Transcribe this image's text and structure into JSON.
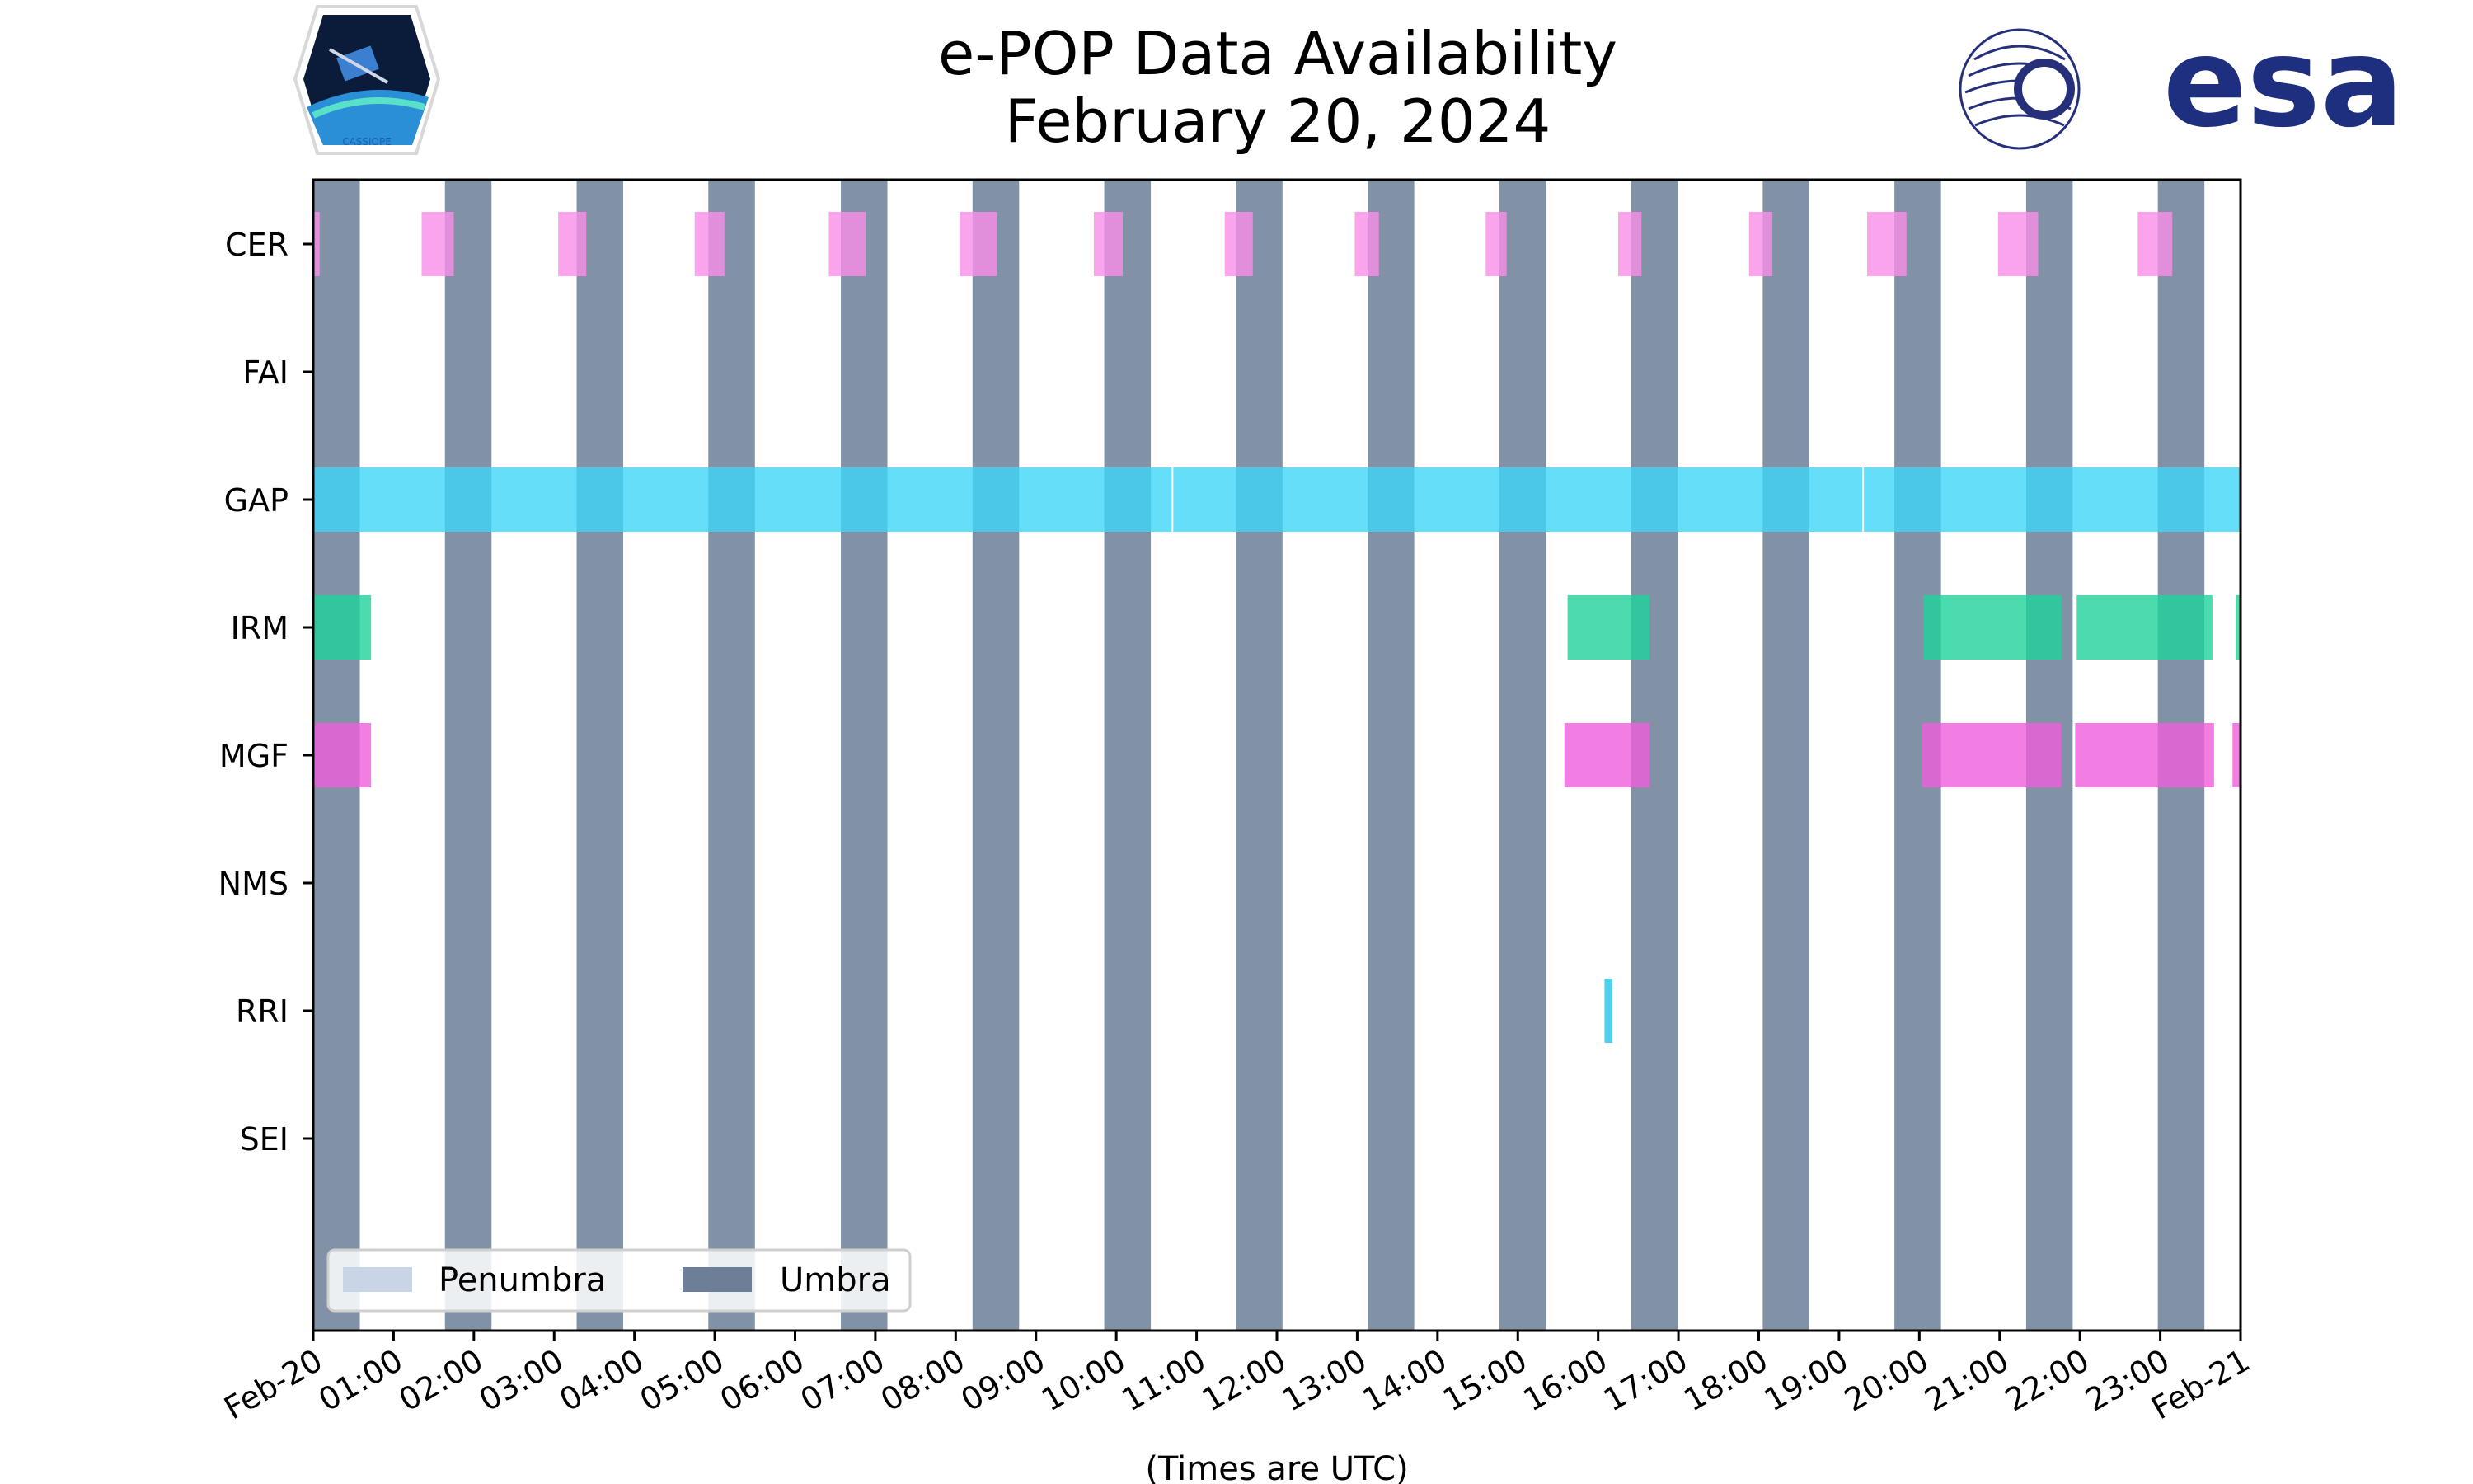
{
  "chart_data": {
    "type": "timeline",
    "title": [
      "e-POP Data Availability",
      "February 20, 2024"
    ],
    "xlabel": "(Times are UTC)",
    "xlim_hours": [
      0,
      24
    ],
    "x_tick_labels": [
      "Feb-20",
      "01:00",
      "02:00",
      "03:00",
      "04:00",
      "05:00",
      "06:00",
      "07:00",
      "08:00",
      "09:00",
      "10:00",
      "11:00",
      "12:00",
      "13:00",
      "14:00",
      "15:00",
      "16:00",
      "17:00",
      "18:00",
      "19:00",
      "20:00",
      "21:00",
      "22:00",
      "23:00",
      "Feb-21"
    ],
    "instruments": [
      "CER",
      "FAI",
      "GAP",
      "IRM",
      "MGF",
      "NMS",
      "RRI",
      "SEI"
    ],
    "umbra_intervals_hours": [
      [
        0.0,
        0.58
      ],
      [
        1.64,
        2.22
      ],
      [
        3.28,
        3.86
      ],
      [
        4.92,
        5.5
      ],
      [
        6.57,
        7.15
      ],
      [
        8.21,
        8.79
      ],
      [
        9.85,
        10.43
      ],
      [
        11.49,
        12.07
      ],
      [
        13.13,
        13.71
      ],
      [
        14.77,
        15.35
      ],
      [
        16.41,
        16.99
      ],
      [
        18.05,
        18.63
      ],
      [
        19.69,
        20.27
      ],
      [
        21.33,
        21.91
      ],
      [
        22.97,
        23.55
      ]
    ],
    "penumbra_intervals_hours": [],
    "series": [
      {
        "name": "CER",
        "color": "#f98de9",
        "intervals_hours": [
          [
            0.0,
            0.08
          ],
          [
            1.35,
            1.75
          ],
          [
            3.05,
            3.4
          ],
          [
            4.75,
            5.12
          ],
          [
            6.42,
            6.88
          ],
          [
            8.05,
            8.52
          ],
          [
            9.72,
            10.08
          ],
          [
            11.35,
            11.7
          ],
          [
            12.97,
            13.27
          ],
          [
            14.6,
            14.86
          ],
          [
            16.25,
            16.54
          ],
          [
            17.88,
            18.17
          ],
          [
            19.35,
            19.84
          ],
          [
            20.98,
            21.48
          ],
          [
            22.72,
            23.15
          ]
        ]
      },
      {
        "name": "FAI",
        "color": "#4ad8f7",
        "intervals_hours": []
      },
      {
        "name": "GAP",
        "color": "#3dd6f8",
        "intervals_hours": [
          [
            0.0,
            10.69
          ],
          [
            10.71,
            19.29
          ],
          [
            19.31,
            24.0
          ]
        ]
      },
      {
        "name": "IRM",
        "color": "#1fd29a",
        "intervals_hours": [
          [
            0.0,
            0.72
          ],
          [
            15.62,
            16.64
          ],
          [
            20.05,
            21.77
          ],
          [
            21.96,
            23.65
          ],
          [
            23.94,
            24.0
          ]
        ]
      },
      {
        "name": "MGF",
        "color": "#ef5edc",
        "intervals_hours": [
          [
            0.0,
            0.72
          ],
          [
            15.58,
            16.64
          ],
          [
            20.03,
            21.77
          ],
          [
            21.94,
            23.67
          ],
          [
            23.9,
            24.0
          ]
        ]
      },
      {
        "name": "NMS",
        "color": "#f98de9",
        "intervals_hours": []
      },
      {
        "name": "RRI",
        "color": "#22c6ea",
        "intervals_hours": [
          [
            16.08,
            16.18
          ]
        ]
      },
      {
        "name": "SEI",
        "color": "#1fd29a",
        "intervals_hours": []
      }
    ],
    "legend": {
      "placement": "lower-left",
      "entries": [
        {
          "label": "Penumbra",
          "color": "#c9d5e6"
        },
        {
          "label": "Umbra",
          "color": "#6c7f96"
        }
      ]
    },
    "grid": false
  },
  "logos": {
    "left": {
      "name": "CASSIOPE",
      "text": "CASSIOPE"
    },
    "right": {
      "name": "esa",
      "text": "esa",
      "color": "#1f2f80"
    }
  },
  "colors": {
    "umbra": "#6c7f96",
    "penumbra": "#c9d5e6",
    "axis": "#000000",
    "background": "#ffffff"
  }
}
